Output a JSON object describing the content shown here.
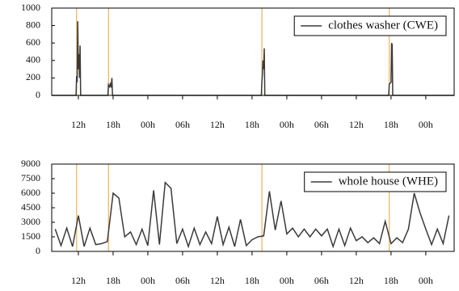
{
  "chart_data": [
    {
      "type": "line",
      "series": [
        {
          "name": "clothes washer (CWE)",
          "color": "#3a3a3a",
          "x": [
            7.4,
            11.6,
            11.7,
            11.8,
            11.9,
            12.0,
            12.1,
            12.2,
            12.3,
            12.4,
            17.1,
            17.2,
            17.35,
            17.5,
            17.65,
            17.8,
            17.9,
            43.6,
            43.7,
            43.8,
            43.9,
            44.0,
            44.1,
            44.2,
            65.6,
            65.7,
            65.85,
            66.0,
            66.1,
            66.2,
            66.3,
            76.9
          ],
          "values": [
            0,
            0,
            220,
            150,
            850,
            300,
            470,
            200,
            570,
            0,
            0,
            120,
            100,
            130,
            90,
            200,
            0,
            0,
            160,
            250,
            400,
            300,
            540,
            0,
            0,
            130,
            140,
            150,
            600,
            580,
            0,
            0
          ]
        }
      ],
      "xlim": [
        7.4,
        76.9
      ],
      "xticks": [
        {
          "value": 12,
          "label": "12h"
        },
        {
          "value": 18,
          "label": "18h"
        },
        {
          "value": 24,
          "label": "00h"
        },
        {
          "value": 30,
          "label": "06h"
        },
        {
          "value": 36,
          "label": "12h"
        },
        {
          "value": 42,
          "label": "18h"
        },
        {
          "value": 48,
          "label": "00h"
        },
        {
          "value": 54,
          "label": "06h"
        },
        {
          "value": 60,
          "label": "12h"
        },
        {
          "value": 66,
          "label": "18h"
        },
        {
          "value": 72,
          "label": "00h"
        }
      ],
      "ylim": [
        0,
        1000
      ],
      "yticks": [
        0,
        200,
        400,
        600,
        800,
        1000
      ],
      "vlines": [
        11.7,
        17.2,
        43.7,
        65.7
      ],
      "vline_color": "#e8a33c",
      "legend": "upper right"
    },
    {
      "type": "line",
      "series": [
        {
          "name": "whole house (WHE)",
          "color": "#3a3a3a",
          "x": [
            8,
            9,
            10,
            11,
            12,
            13,
            14,
            15,
            16,
            17,
            18,
            19,
            20,
            21,
            22,
            23,
            24,
            25,
            26,
            27,
            28,
            29,
            30,
            31,
            32,
            33,
            34,
            35,
            36,
            37,
            38,
            39,
            40,
            41,
            42,
            43,
            44,
            45,
            46,
            47,
            48,
            49,
            50,
            51,
            52,
            53,
            54,
            55,
            56,
            57,
            58,
            59,
            60,
            61,
            62,
            63,
            64,
            65,
            66,
            67,
            68,
            69,
            70,
            71,
            72,
            73,
            74,
            75,
            76
          ],
          "values": [
            2300,
            600,
            2400,
            500,
            3700,
            500,
            2400,
            700,
            800,
            1000,
            6000,
            5500,
            1500,
            2000,
            700,
            2300,
            600,
            6300,
            700,
            7100,
            6500,
            800,
            2300,
            500,
            2400,
            700,
            2000,
            800,
            3600,
            700,
            2500,
            500,
            3300,
            600,
            1200,
            1500,
            1600,
            6200,
            2200,
            5200,
            1800,
            2400,
            1500,
            2300,
            1500,
            2300,
            1600,
            2300,
            500,
            2300,
            600,
            2400,
            1100,
            1500,
            900,
            1400,
            800,
            3100,
            800,
            1400,
            900,
            2300,
            6000,
            4000,
            2300,
            700,
            2300,
            800,
            3700
          ]
        }
      ],
      "xlim": [
        7.4,
        76.9
      ],
      "xticks": [
        {
          "value": 12,
          "label": "12h"
        },
        {
          "value": 18,
          "label": "18h"
        },
        {
          "value": 24,
          "label": "00h"
        },
        {
          "value": 30,
          "label": "06h"
        },
        {
          "value": 36,
          "label": "12h"
        },
        {
          "value": 42,
          "label": "18h"
        },
        {
          "value": 48,
          "label": "00h"
        },
        {
          "value": 54,
          "label": "06h"
        },
        {
          "value": 60,
          "label": "12h"
        },
        {
          "value": 66,
          "label": "18h"
        },
        {
          "value": 72,
          "label": "00h"
        }
      ],
      "ylim": [
        0,
        9000
      ],
      "yticks": [
        0,
        1500,
        3000,
        4500,
        6000,
        7500,
        9000
      ],
      "vlines": [
        11.7,
        17.2,
        43.7,
        65.7
      ],
      "vline_color": "#e8a33c",
      "legend": "upper right"
    }
  ]
}
